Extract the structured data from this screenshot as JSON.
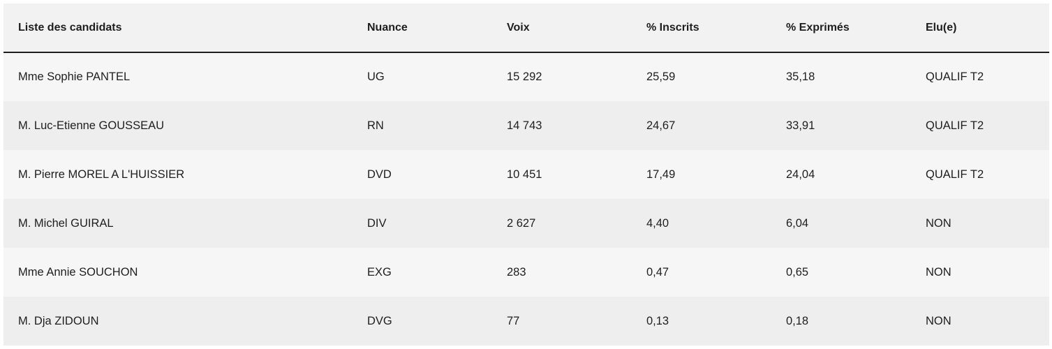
{
  "table": {
    "headers": [
      "Liste des candidats",
      "Nuance",
      "Voix",
      "% Inscrits",
      "% Exprimés",
      "Elu(e)"
    ],
    "rows": [
      [
        "Mme Sophie PANTEL",
        "UG",
        "15 292",
        "25,59",
        "35,18",
        "QUALIF T2"
      ],
      [
        "M. Luc-Etienne GOUSSEAU",
        "RN",
        "14 743",
        "24,67",
        "33,91",
        "QUALIF T2"
      ],
      [
        "M. Pierre MOREL A L'HUISSIER",
        "DVD",
        "10 451",
        "17,49",
        "24,04",
        "QUALIF T2"
      ],
      [
        "M. Michel GUIRAL",
        "DIV",
        "2 627",
        "4,40",
        "6,04",
        "NON"
      ],
      [
        "Mme Annie SOUCHON",
        "EXG",
        "283",
        "0,47",
        "0,65",
        "NON"
      ],
      [
        "M. Dja ZIDOUN",
        "DVG",
        "77",
        "0,13",
        "0,18",
        "NON"
      ]
    ]
  }
}
